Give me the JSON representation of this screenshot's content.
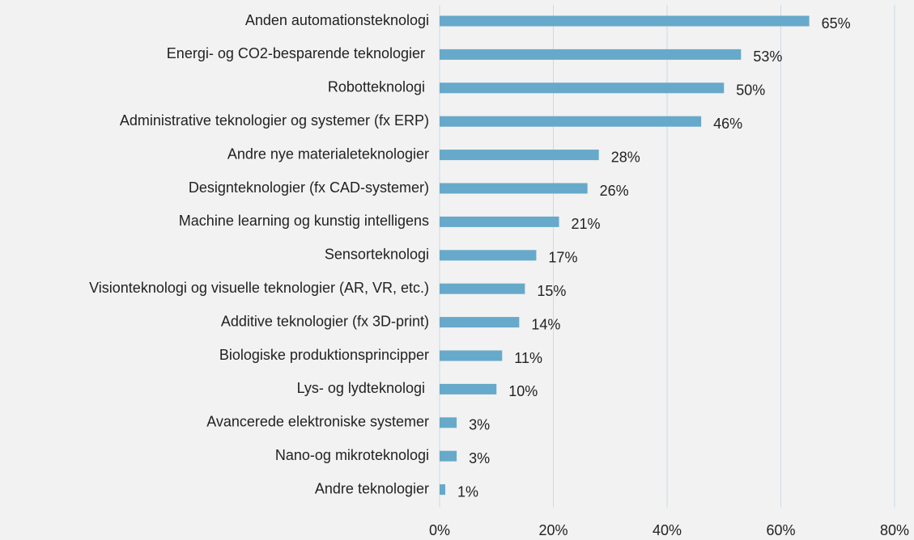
{
  "chart_data": {
    "type": "hbar",
    "categories": [
      "Anden automationsteknologi",
      "Energi- og CO2-besparende teknologier ",
      "Robotteknologi ",
      "Administrative teknologier og systemer (fx ERP)",
      "Andre nye materialeteknologier",
      "Designteknologier (fx CAD-systemer)",
      "Machine learning og kunstig intelligens",
      "Sensorteknologi",
      "Visionteknologi og visuelle teknologier (AR, VR, etc.)",
      "Additive teknologier (fx 3D-print)",
      "Biologiske produktionsprincipper",
      "Lys- og lydteknologi ",
      "Avancerede elektroniske systemer",
      "Nano-og mikroteknologi",
      "Andre teknologier"
    ],
    "values": [
      65,
      53,
      50,
      46,
      28,
      26,
      21,
      17,
      15,
      14,
      11,
      10,
      3,
      3,
      1
    ],
    "value_labels": [
      "65%",
      "53%",
      "50%",
      "46%",
      "28%",
      "26%",
      "21%",
      "17%",
      "15%",
      "14%",
      "11%",
      "10%",
      "3%",
      "3%",
      "1%"
    ],
    "color": "#67a9ca",
    "xlim": [
      0,
      80
    ],
    "xticks": [
      {
        "value": 0,
        "label": "0%"
      },
      {
        "value": 20,
        "label": "20%"
      },
      {
        "value": 40,
        "label": "40%"
      },
      {
        "value": 60,
        "label": "60%"
      },
      {
        "value": 80,
        "label": "80%"
      }
    ],
    "grid": true
  }
}
